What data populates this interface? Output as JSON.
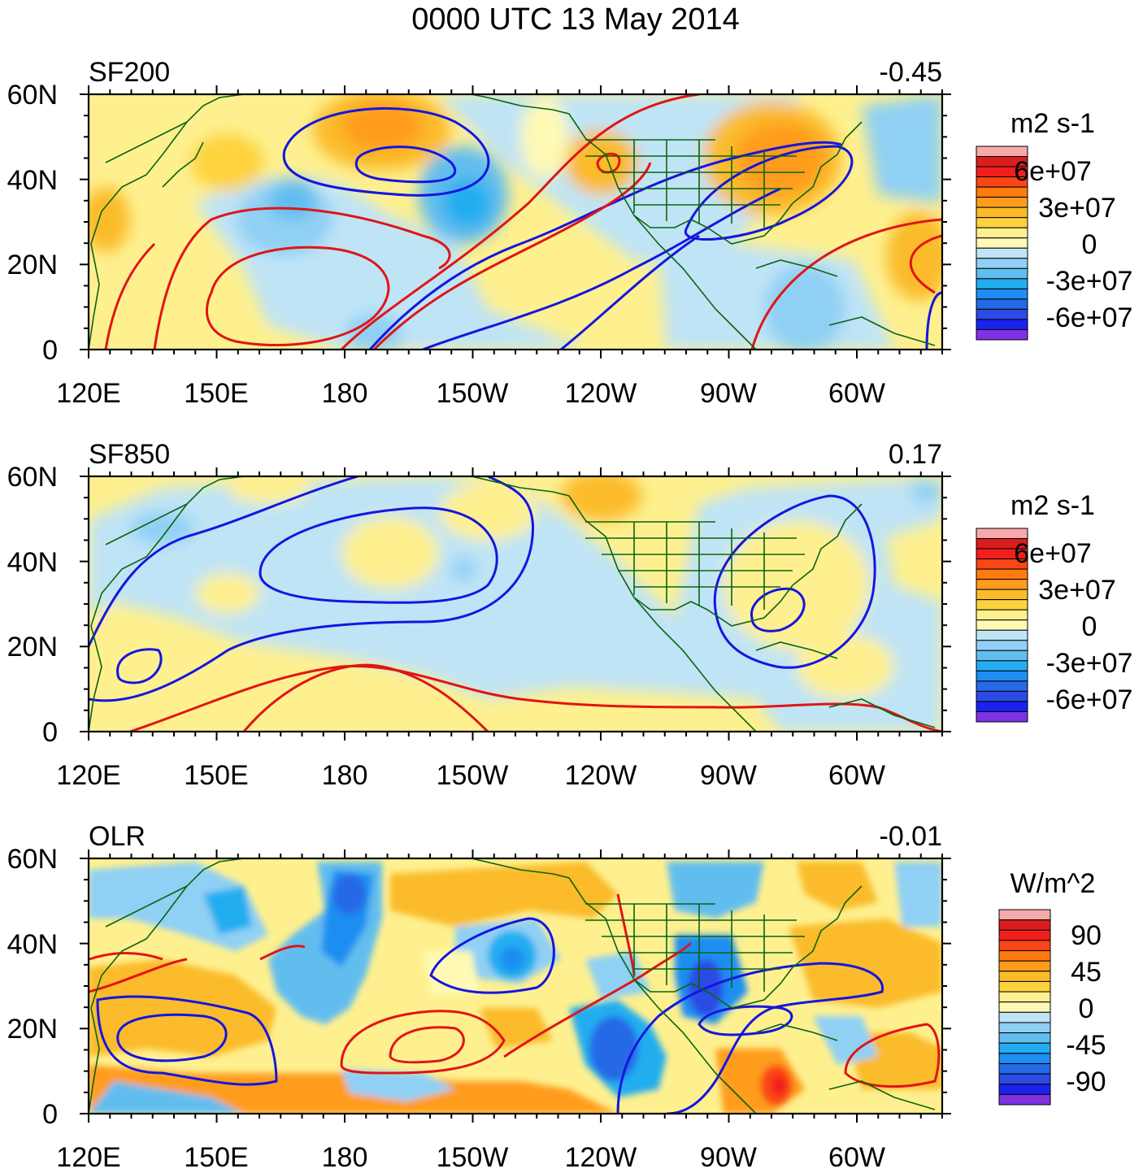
{
  "title": "0000 UTC 13 May 2014",
  "chart_data": [
    {
      "type": "heatmap",
      "panel": "SF200",
      "title_left": "SF200",
      "title_right": "-0.45",
      "x_ticks": [
        "120E",
        "150E",
        "180",
        "150W",
        "120W",
        "90W",
        "60W"
      ],
      "y_ticks": [
        "60N",
        "40N",
        "20N",
        "0"
      ],
      "xlim_deg_east": [
        120,
        320
      ],
      "ylim_deg": [
        0,
        60
      ],
      "colorbar_units": "m2 s-1",
      "colorbar_labels": [
        "6e+07",
        "3e+07",
        "0",
        "-3e+07",
        "-6e+07"
      ],
      "colorbar_colors": [
        "#f6a9ab",
        "#d91e1e",
        "#f21d1d",
        "#fa4616",
        "#ff7a0f",
        "#ff9c1e",
        "#fbbb2b",
        "#fdd33d",
        "#fef08f",
        "#fef9b4",
        "#bfe4f6",
        "#90d0f4",
        "#62bdef",
        "#22adf0",
        "#1e8ef2",
        "#2569e6",
        "#2b4be4",
        "#1a22ee",
        "#7f32e3"
      ],
      "shading": [
        {
          "value": 45000000.0,
          "color": "#ff7a0f",
          "desc": "maximum near 40N 170W"
        },
        {
          "value": -30000000.0,
          "color": "#22adf0",
          "desc": "minimum near 35N 150W"
        },
        {
          "value": 45000000.0,
          "color": "#ff7a0f",
          "desc": "maximum near 45N 80W"
        },
        {
          "value": -20000000.0,
          "color": "#62bdef",
          "desc": "minimum near 35N 165E"
        }
      ],
      "contours": [
        {
          "color": "red",
          "sign": "positive"
        },
        {
          "color": "blue",
          "sign": "negative"
        }
      ]
    },
    {
      "type": "heatmap",
      "panel": "SF850",
      "title_left": "SF850",
      "title_right": "0.17",
      "x_ticks": [
        "120E",
        "150E",
        "180",
        "150W",
        "120W",
        "90W",
        "60W"
      ],
      "y_ticks": [
        "60N",
        "40N",
        "20N",
        "0"
      ],
      "xlim_deg_east": [
        120,
        320
      ],
      "ylim_deg": [
        0,
        60
      ],
      "colorbar_units": "m2 s-1",
      "colorbar_labels": [
        "6e+07",
        "3e+07",
        "0",
        "-3e+07",
        "-6e+07"
      ],
      "colorbar_colors": [
        "#f6a9ab",
        "#d91e1e",
        "#f21d1d",
        "#fa4616",
        "#ff7a0f",
        "#ff9c1e",
        "#fbbb2b",
        "#fdd33d",
        "#fef08f",
        "#fef9b4",
        "#bfe4f6",
        "#90d0f4",
        "#62bdef",
        "#22adf0",
        "#1e8ef2",
        "#2569e6",
        "#2b4be4",
        "#1a22ee",
        "#7f32e3"
      ],
      "shading": [
        {
          "value": -10000000.0,
          "color": "#bfe4f6",
          "desc": "broad negative belt 20-45N"
        },
        {
          "value": 10000000.0,
          "color": "#fdd33d",
          "desc": "positive near 50N 125W"
        }
      ],
      "contours": [
        {
          "color": "red",
          "sign": "positive"
        },
        {
          "color": "blue",
          "sign": "negative"
        }
      ]
    },
    {
      "type": "heatmap",
      "panel": "OLR",
      "title_left": "OLR",
      "title_right": "-0.01",
      "x_ticks": [
        "120E",
        "150E",
        "180",
        "150W",
        "120W",
        "90W",
        "60W"
      ],
      "y_ticks": [
        "60N",
        "40N",
        "20N",
        "0"
      ],
      "xlim_deg_east": [
        120,
        320
      ],
      "ylim_deg": [
        0,
        60
      ],
      "colorbar_units": "W/m^2",
      "colorbar_labels": [
        "90",
        "45",
        "0",
        "-45",
        "-90"
      ],
      "colorbar_colors": [
        "#f6a9ab",
        "#d91e1e",
        "#f21d1d",
        "#fa4616",
        "#ff7a0f",
        "#ff9c1e",
        "#fbbb2b",
        "#fdd33d",
        "#fef08f",
        "#fef9b4",
        "#bfe4f6",
        "#90d0f4",
        "#62bdef",
        "#22adf0",
        "#1e8ef2",
        "#2569e6",
        "#2b4be4",
        "#1a22ee",
        "#7f32e3"
      ],
      "shading": [
        {
          "value": -70,
          "color": "#2569e6",
          "desc": "minimum near 45N 175E"
        },
        {
          "value": -80,
          "color": "#2b4be4",
          "desc": "minimum near 30N 95W"
        },
        {
          "value": 80,
          "color": "#f21d1d",
          "desc": "maximum near 5N 80W"
        }
      ],
      "contours": [
        {
          "color": "red",
          "sign": "positive"
        },
        {
          "color": "blue",
          "sign": "negative"
        }
      ]
    }
  ]
}
